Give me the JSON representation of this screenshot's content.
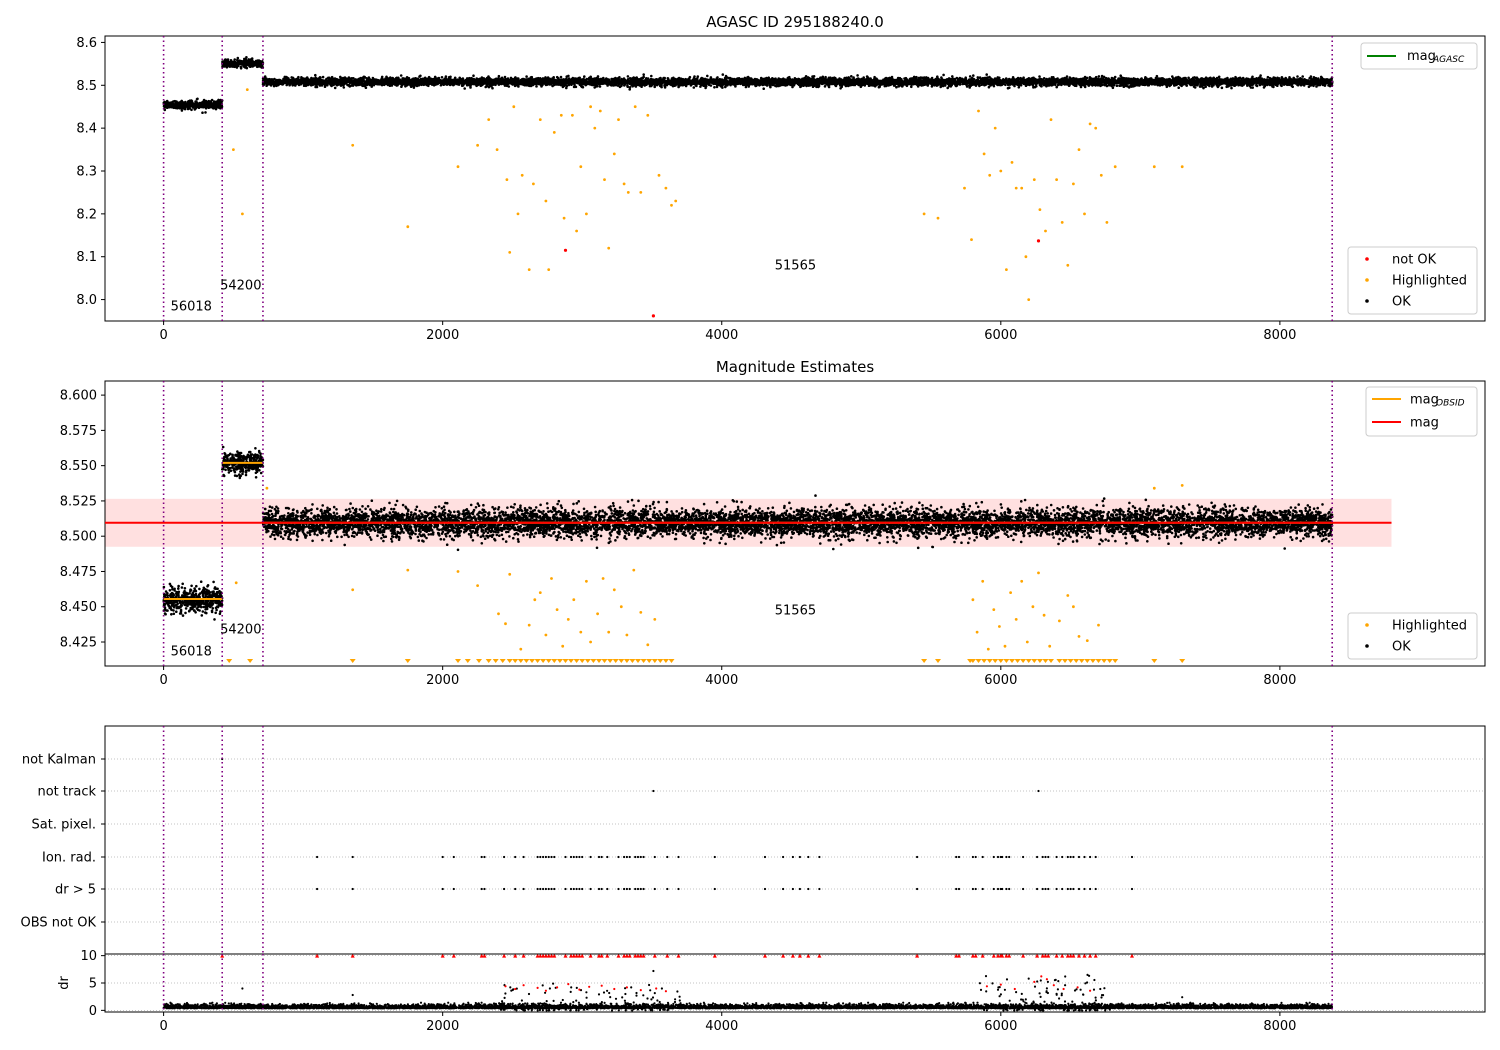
{
  "figure": {
    "panels": [
      {
        "id": "p1",
        "title": "AGASC ID 295188240.0"
      },
      {
        "id": "p2",
        "title": "Magnitude Estimates"
      }
    ]
  },
  "chart_data": [
    {
      "type": "scatter",
      "title": "AGASC ID 295188240.0",
      "xlabel": "",
      "ylabel": "",
      "xlim": [
        -420,
        9470
      ],
      "ylim": [
        7.95,
        8.615
      ],
      "x_ticks": [
        "0",
        "2000",
        "4000",
        "6000",
        "8000"
      ],
      "y_ticks": [
        "8.0",
        "8.1",
        "8.2",
        "8.3",
        "8.4",
        "8.5",
        "8.6"
      ],
      "vlines_x": [
        0,
        420,
        712,
        8375
      ],
      "vline_color": "#800080",
      "obsid_labels": [
        {
          "text": "56018",
          "x": 50,
          "y": 7.975
        },
        {
          "text": "54200",
          "x": 405,
          "y": 8.023
        },
        {
          "text": "51565",
          "x": 4380,
          "y": 8.07
        }
      ],
      "ok_segments": [
        {
          "x0": 0,
          "x1": 420,
          "level": 8.455,
          "spread": 0.009
        },
        {
          "x0": 420,
          "x1": 712,
          "level": 8.551,
          "spread": 0.009
        },
        {
          "x0": 712,
          "x1": 8375,
          "level": 8.508,
          "spread": 0.009
        }
      ],
      "highlighted_points": [
        [
          500,
          8.35
        ],
        [
          565,
          8.2
        ],
        [
          600,
          8.49
        ],
        [
          1355,
          8.36
        ],
        [
          1750,
          8.17
        ],
        [
          2110,
          8.31
        ],
        [
          2250,
          8.36
        ],
        [
          2330,
          8.42
        ],
        [
          2390,
          8.35
        ],
        [
          2460,
          8.28
        ],
        [
          2480,
          8.11
        ],
        [
          2510,
          8.45
        ],
        [
          2540,
          8.2
        ],
        [
          2570,
          8.29
        ],
        [
          2620,
          8.07
        ],
        [
          2650,
          8.27
        ],
        [
          2700,
          8.42
        ],
        [
          2740,
          8.23
        ],
        [
          2760,
          8.07
        ],
        [
          2800,
          8.39
        ],
        [
          2850,
          8.43
        ],
        [
          2870,
          8.19
        ],
        [
          2930,
          8.43
        ],
        [
          2960,
          8.16
        ],
        [
          2990,
          8.31
        ],
        [
          3030,
          8.2
        ],
        [
          3060,
          8.45
        ],
        [
          3090,
          8.4
        ],
        [
          3130,
          8.44
        ],
        [
          3160,
          8.28
        ],
        [
          3190,
          8.12
        ],
        [
          3230,
          8.34
        ],
        [
          3260,
          8.42
        ],
        [
          3300,
          8.27
        ],
        [
          3330,
          8.25
        ],
        [
          3380,
          8.45
        ],
        [
          3420,
          8.25
        ],
        [
          3470,
          8.43
        ],
        [
          3550,
          8.29
        ],
        [
          3600,
          8.26
        ],
        [
          3640,
          8.22
        ],
        [
          3670,
          8.23
        ],
        [
          5450,
          8.2
        ],
        [
          5550,
          8.19
        ],
        [
          5740,
          8.26
        ],
        [
          5790,
          8.14
        ],
        [
          5840,
          8.44
        ],
        [
          5880,
          8.34
        ],
        [
          5920,
          8.29
        ],
        [
          5960,
          8.4
        ],
        [
          6000,
          8.3
        ],
        [
          6040,
          8.07
        ],
        [
          6080,
          8.32
        ],
        [
          6110,
          8.26
        ],
        [
          6150,
          8.26
        ],
        [
          6180,
          8.1
        ],
        [
          6200,
          8.0
        ],
        [
          6240,
          8.28
        ],
        [
          6280,
          8.21
        ],
        [
          6320,
          8.16
        ],
        [
          6360,
          8.42
        ],
        [
          6400,
          8.28
        ],
        [
          6440,
          8.18
        ],
        [
          6480,
          8.08
        ],
        [
          6520,
          8.27
        ],
        [
          6560,
          8.35
        ],
        [
          6600,
          8.2
        ],
        [
          6640,
          8.41
        ],
        [
          6680,
          8.4
        ],
        [
          6720,
          8.29
        ],
        [
          6760,
          8.18
        ],
        [
          6820,
          8.31
        ],
        [
          7100,
          8.31
        ],
        [
          7300,
          8.31
        ]
      ],
      "not_ok_points": [
        [
          2880,
          8.115
        ],
        [
          3510,
          7.962
        ],
        [
          6270,
          8.137
        ]
      ],
      "legend_upper": [
        {
          "label": "mag",
          "sub": "AGASC",
          "color": "#008000"
        }
      ],
      "legend_lower": [
        {
          "label": "not OK",
          "color": "#ff0000"
        },
        {
          "label": "Highlighted",
          "color": "#ffa500"
        },
        {
          "label": "OK",
          "color": "#000000"
        }
      ]
    },
    {
      "type": "scatter",
      "title": "Magnitude Estimates",
      "xlabel": "",
      "ylabel": "",
      "xlim": [
        -420,
        9470
      ],
      "ylim": [
        8.408,
        8.61
      ],
      "x_ticks": [
        "0",
        "2000",
        "4000",
        "6000",
        "8000"
      ],
      "y_ticks": [
        "8.425",
        "8.450",
        "8.475",
        "8.500",
        "8.525",
        "8.550",
        "8.575",
        "8.600"
      ],
      "vlines_x": [
        0,
        420,
        712,
        8375
      ],
      "mag": 8.5095,
      "mag_band": [
        8.4925,
        8.5265
      ],
      "obsid_mag_lines": [
        {
          "x0": 0,
          "x1": 420,
          "mag": 8.4555
        },
        {
          "x0": 420,
          "x1": 712,
          "mag": 8.552
        },
        {
          "x0": 712,
          "x1": 8375,
          "mag": 8.5095
        }
      ],
      "obsid_labels": [
        {
          "text": "56018",
          "x": 50,
          "y": 8.4155
        },
        {
          "text": "54200",
          "x": 405,
          "y": 8.431
        },
        {
          "text": "51565",
          "x": 4380,
          "y": 8.4445
        }
      ],
      "ok_segments": [
        {
          "x0": 0,
          "x1": 420,
          "level": 8.455,
          "spread": 0.009
        },
        {
          "x0": 420,
          "x1": 712,
          "level": 8.552,
          "spread": 0.008
        },
        {
          "x0": 712,
          "x1": 8375,
          "level": 8.5095,
          "spread": 0.01
        }
      ],
      "highlighted_points": [
        [
          520,
          8.467
        ],
        [
          740,
          8.534
        ],
        [
          1355,
          8.462
        ],
        [
          1750,
          8.476
        ],
        [
          2110,
          8.475
        ],
        [
          2250,
          8.465
        ],
        [
          2400,
          8.445
        ],
        [
          2450,
          8.438
        ],
        [
          2480,
          8.473
        ],
        [
          2560,
          8.42
        ],
        [
          2620,
          8.437
        ],
        [
          2660,
          8.455
        ],
        [
          2700,
          8.46
        ],
        [
          2740,
          8.43
        ],
        [
          2780,
          8.47
        ],
        [
          2820,
          8.448
        ],
        [
          2860,
          8.422
        ],
        [
          2900,
          8.441
        ],
        [
          2940,
          8.455
        ],
        [
          2990,
          8.432
        ],
        [
          3030,
          8.468
        ],
        [
          3060,
          8.425
        ],
        [
          3110,
          8.445
        ],
        [
          3150,
          8.47
        ],
        [
          3190,
          8.432
        ],
        [
          3230,
          8.462
        ],
        [
          3280,
          8.45
        ],
        [
          3320,
          8.43
        ],
        [
          3370,
          8.476
        ],
        [
          3420,
          8.446
        ],
        [
          3470,
          8.423
        ],
        [
          3520,
          8.441
        ],
        [
          5800,
          8.455
        ],
        [
          5830,
          8.432
        ],
        [
          5870,
          8.468
        ],
        [
          5910,
          8.42
        ],
        [
          5950,
          8.448
        ],
        [
          5990,
          8.436
        ],
        [
          6030,
          8.422
        ],
        [
          6070,
          8.46
        ],
        [
          6110,
          8.441
        ],
        [
          6150,
          8.468
        ],
        [
          6190,
          8.425
        ],
        [
          6230,
          8.45
        ],
        [
          6270,
          8.474
        ],
        [
          6310,
          8.444
        ],
        [
          6350,
          8.422
        ],
        [
          6420,
          8.44
        ],
        [
          6480,
          8.458
        ],
        [
          6520,
          8.45
        ],
        [
          6560,
          8.429
        ],
        [
          6620,
          8.426
        ],
        [
          6700,
          8.437
        ],
        [
          7100,
          8.534
        ],
        [
          7300,
          8.536
        ]
      ],
      "lower_limit_x": [
        470,
        620,
        1355,
        1750,
        2110,
        2180,
        2260,
        2330,
        2380,
        2430,
        2480,
        2520,
        2560,
        2600,
        2640,
        2680,
        2720,
        2760,
        2800,
        2840,
        2880,
        2920,
        2960,
        3000,
        3040,
        3080,
        3120,
        3160,
        3200,
        3240,
        3280,
        3320,
        3360,
        3400,
        3440,
        3480,
        3520,
        3560,
        3600,
        3640,
        5450,
        5550,
        5780,
        5800,
        5840,
        5880,
        5920,
        5960,
        6000,
        6040,
        6080,
        6120,
        6160,
        6200,
        6240,
        6280,
        6320,
        6360,
        6420,
        6460,
        6500,
        6540,
        6580,
        6620,
        6660,
        6700,
        6740,
        6780,
        6820,
        7100,
        7300
      ],
      "legend_upper": [
        {
          "label": "mag",
          "sub": "OBSID",
          "color": "#ffa500"
        },
        {
          "label": "mag",
          "sub": "",
          "color": "#ff0000"
        }
      ],
      "legend_lower": [
        {
          "label": "Highlighted",
          "color": "#ffa500"
        },
        {
          "label": "OK",
          "color": "#000000"
        }
      ]
    },
    {
      "type": "scatter",
      "title": "",
      "xlabel": "",
      "ylabel": "",
      "xlim": [
        -420,
        9470
      ],
      "categories": [
        "not Kalman",
        "not track",
        "Sat. pixel.",
        "Ion. rad.",
        "dr > 5",
        "OBS not OK"
      ],
      "vlines_x": [
        0,
        420,
        712,
        8375
      ],
      "flag_points": {
        "not Kalman": [
          420
        ],
        "not track": [
          3510,
          6270
        ],
        "Sat. pixel.": [],
        "Ion. rad.": [
          1100,
          1355,
          2000,
          2080,
          2280,
          2300,
          2440,
          2520,
          2580,
          2680,
          2700,
          2720,
          2740,
          2760,
          2780,
          2800,
          2880,
          2920,
          2940,
          2960,
          2980,
          3000,
          3060,
          3120,
          3140,
          3180,
          3260,
          3300,
          3320,
          3340,
          3380,
          3400,
          3420,
          3440,
          3520,
          3610,
          3690,
          3950,
          4310,
          4440,
          4510,
          4560,
          4620,
          4700,
          5400,
          5680,
          5700,
          5800,
          5820,
          5870,
          5950,
          5980,
          6000,
          6010,
          6040,
          6060,
          6160,
          6260,
          6300,
          6320,
          6340,
          6400,
          6440,
          6480,
          6500,
          6520,
          6560,
          6600,
          6640,
          6680,
          6940
        ],
        "dr > 5": [
          1100,
          1355,
          2000,
          2080,
          2280,
          2300,
          2440,
          2520,
          2580,
          2680,
          2700,
          2720,
          2740,
          2760,
          2780,
          2800,
          2880,
          2920,
          2940,
          2960,
          2980,
          3000,
          3060,
          3120,
          3140,
          3180,
          3260,
          3300,
          3320,
          3340,
          3380,
          3400,
          3420,
          3440,
          3520,
          3610,
          3690,
          3950,
          4310,
          4440,
          4510,
          4560,
          4620,
          4700,
          5400,
          5680,
          5700,
          5800,
          5820,
          5870,
          5950,
          5980,
          6000,
          6010,
          6040,
          6060,
          6160,
          6260,
          6300,
          6320,
          6340,
          6400,
          6440,
          6480,
          6500,
          6520,
          6560,
          6600,
          6640,
          6680,
          6940
        ],
        "OBS not OK": []
      }
    },
    {
      "type": "scatter",
      "title": "",
      "xlabel": "",
      "ylabel": "dr",
      "xlim": [
        -420,
        9470
      ],
      "ylim": [
        -0.3,
        10.3
      ],
      "x_ticks": [
        "0",
        "2000",
        "4000",
        "6000",
        "8000"
      ],
      "y_ticks": [
        "0",
        "5",
        "10"
      ],
      "vlines_x": [
        0,
        420,
        712,
        8375
      ],
      "baseline": {
        "x0": 0,
        "x1": 8375,
        "mean": 0.35,
        "spread": 0.35
      },
      "scatter_regions": [
        {
          "x0": 2400,
          "x1": 3700,
          "max": 5
        },
        {
          "x0": 5850,
          "x1": 6800,
          "max": 6.5
        }
      ],
      "isolated_points": [
        [
          1355,
          2.8
        ],
        [
          565,
          4.0
        ],
        [
          3510,
          7.2
        ],
        [
          7300,
          2.4
        ]
      ],
      "capped_red_x": [
        420,
        1100,
        1355,
        2000,
        2080,
        2280,
        2300,
        2440,
        2520,
        2580,
        2680,
        2700,
        2720,
        2740,
        2760,
        2780,
        2800,
        2880,
        2920,
        2940,
        2960,
        2980,
        3000,
        3060,
        3120,
        3140,
        3180,
        3260,
        3300,
        3320,
        3340,
        3380,
        3400,
        3420,
        3440,
        3520,
        3610,
        3690,
        3950,
        4310,
        4440,
        4510,
        4560,
        4620,
        4700,
        5400,
        5680,
        5700,
        5800,
        5820,
        5870,
        5950,
        5980,
        6000,
        6010,
        6040,
        6060,
        6160,
        6260,
        6300,
        6320,
        6340,
        6400,
        6440,
        6480,
        6500,
        6520,
        6560,
        6600,
        6640,
        6680,
        6940
      ],
      "red_near_points": [
        [
          2450,
          4.4
        ],
        [
          2520,
          3.9
        ],
        [
          2580,
          4.6
        ],
        [
          2680,
          4.1
        ],
        [
          2740,
          3.6
        ],
        [
          2820,
          4.2
        ],
        [
          2900,
          4.8
        ],
        [
          2980,
          3.8
        ],
        [
          3050,
          4.3
        ],
        [
          3140,
          4.5
        ],
        [
          3230,
          3.9
        ],
        [
          3320,
          4.2
        ],
        [
          3420,
          3.7
        ],
        [
          3530,
          4.0
        ],
        [
          3600,
          3.5
        ],
        [
          5900,
          4.4
        ],
        [
          6000,
          4.7
        ],
        [
          6100,
          3.9
        ],
        [
          6240,
          5.2
        ],
        [
          6290,
          6.2
        ],
        [
          6330,
          5.7
        ],
        [
          6380,
          4.6
        ],
        [
          6450,
          3.9
        ],
        [
          6550,
          4.2
        ],
        [
          6640,
          3.6
        ]
      ]
    }
  ]
}
